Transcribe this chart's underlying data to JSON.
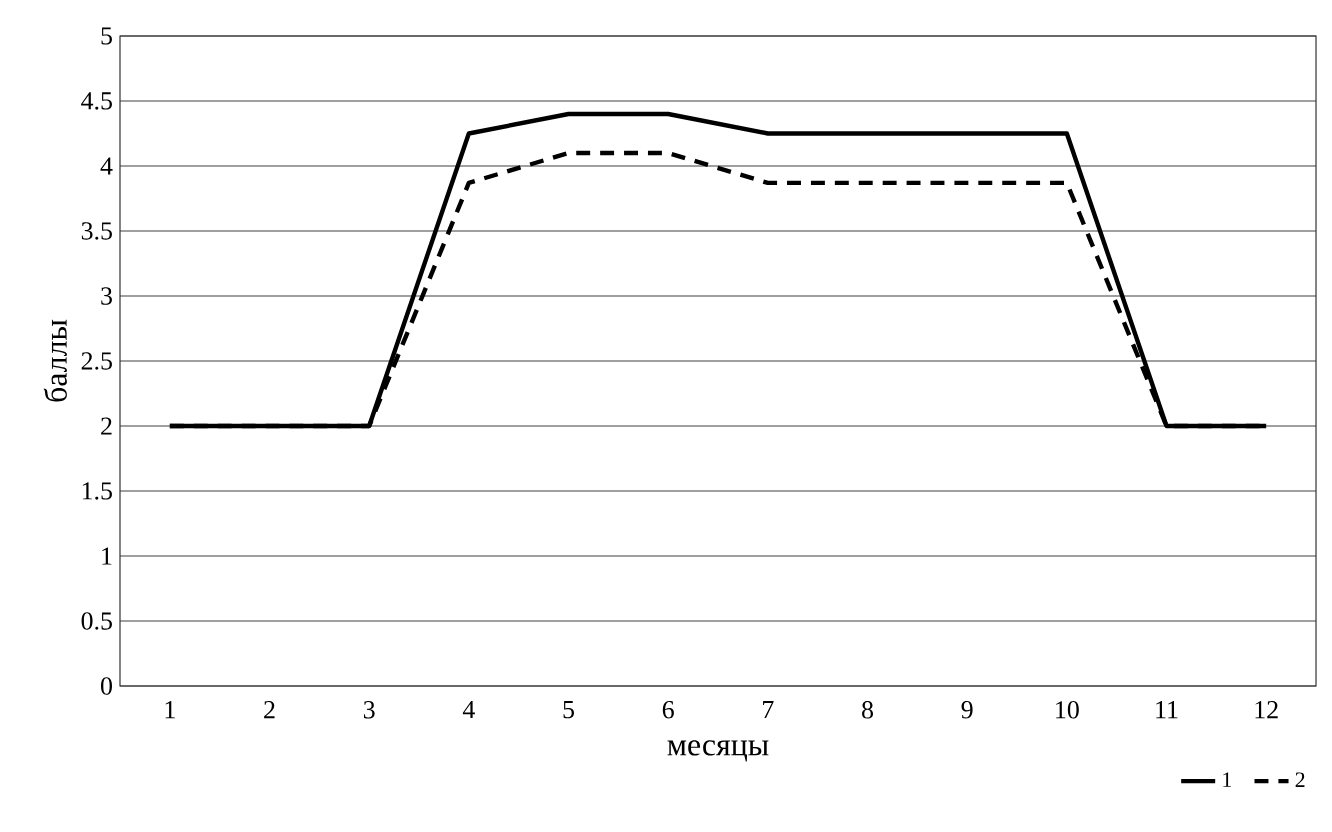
{
  "chart_data": {
    "type": "line",
    "xlabel": "месяцы",
    "ylabel": "баллы",
    "categories": [
      "1",
      "2",
      "3",
      "4",
      "5",
      "6",
      "7",
      "8",
      "9",
      "10",
      "11",
      "12"
    ],
    "series": [
      {
        "name": "1",
        "color": "#000000",
        "line_style": "solid",
        "values": [
          2,
          2,
          2,
          4.25,
          4.4,
          4.4,
          4.25,
          4.25,
          4.25,
          4.25,
          2,
          2
        ]
      },
      {
        "name": "2",
        "color": "#000000",
        "line_style": "dashed",
        "values": [
          2,
          2,
          2,
          3.87,
          4.1,
          4.1,
          3.87,
          3.87,
          3.87,
          3.87,
          2,
          2
        ]
      }
    ],
    "ylim": [
      0,
      5
    ],
    "yticks": [
      0,
      0.5,
      1,
      1.5,
      2,
      2.5,
      3,
      3.5,
      4,
      4.5,
      5
    ],
    "grid": "y",
    "legend": "bottom right",
    "marker": "none"
  }
}
